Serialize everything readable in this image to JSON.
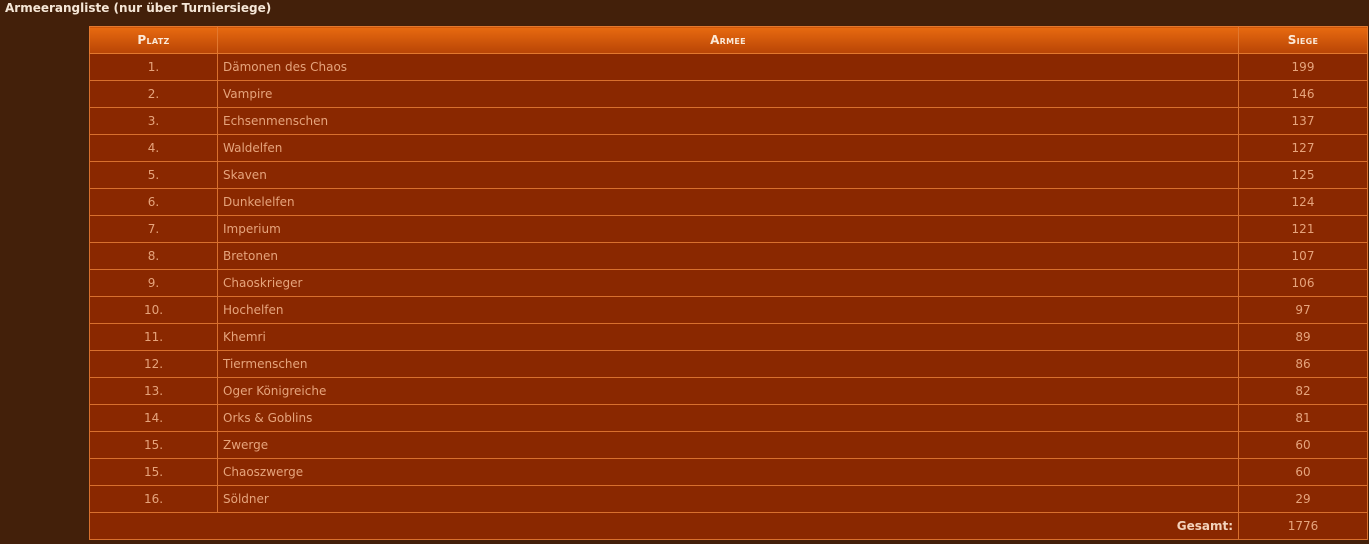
{
  "title": "Armeerangliste (nur über Turniersiege)",
  "columns": {
    "rank": "Platz",
    "army": "Armee",
    "wins": "Siege"
  },
  "rows": [
    {
      "rank": "1.",
      "army": "Dämonen des Chaos",
      "wins": "199"
    },
    {
      "rank": "2.",
      "army": "Vampire",
      "wins": "146"
    },
    {
      "rank": "3.",
      "army": "Echsenmenschen",
      "wins": "137"
    },
    {
      "rank": "4.",
      "army": "Waldelfen",
      "wins": "127"
    },
    {
      "rank": "5.",
      "army": "Skaven",
      "wins": "125"
    },
    {
      "rank": "6.",
      "army": "Dunkelelfen",
      "wins": "124"
    },
    {
      "rank": "7.",
      "army": "Imperium",
      "wins": "121"
    },
    {
      "rank": "8.",
      "army": "Bretonen",
      "wins": "107"
    },
    {
      "rank": "9.",
      "army": "Chaoskrieger",
      "wins": "106"
    },
    {
      "rank": "10.",
      "army": "Hochelfen",
      "wins": "97"
    },
    {
      "rank": "11.",
      "army": "Khemri",
      "wins": "89"
    },
    {
      "rank": "12.",
      "army": "Tiermenschen",
      "wins": "86"
    },
    {
      "rank": "13.",
      "army": "Oger Königreiche",
      "wins": "82"
    },
    {
      "rank": "14.",
      "army": "Orks & Goblins",
      "wins": "81"
    },
    {
      "rank": "15.",
      "army": "Zwerge",
      "wins": "60"
    },
    {
      "rank": "15.",
      "army": "Chaoszwerge",
      "wins": "60"
    },
    {
      "rank": "16.",
      "army": "Söldner",
      "wins": "29"
    }
  ],
  "total": {
    "label": "Gesamt:",
    "value": "1776"
  }
}
